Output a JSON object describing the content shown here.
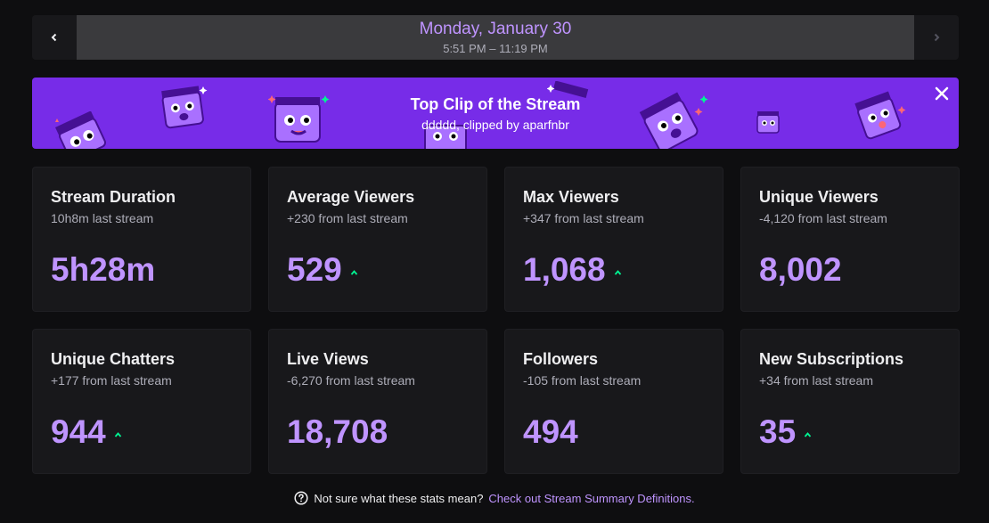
{
  "date_nav": {
    "title": "Monday, January 30",
    "range": "5:51 PM – 11:19 PM",
    "prev_icon": "chevron-left-icon",
    "next_icon": "chevron-right-icon"
  },
  "banner": {
    "title": "Top Clip of the Stream",
    "subtitle": "ddddd, clipped by aparfnbr",
    "close_icon": "close-icon",
    "bg_color": "#772ce8"
  },
  "stats": [
    {
      "title": "Stream Duration",
      "sub": "10h8m last stream",
      "value": "5h28m",
      "trend": "none"
    },
    {
      "title": "Average Viewers",
      "sub": "+230 from last stream",
      "value": "529",
      "trend": "up"
    },
    {
      "title": "Max Viewers",
      "sub": "+347 from last stream",
      "value": "1,068",
      "trend": "up"
    },
    {
      "title": "Unique Viewers",
      "sub": "-4,120 from last stream",
      "value": "8,002",
      "trend": "none"
    },
    {
      "title": "Unique Chatters",
      "sub": "+177 from last stream",
      "value": "944",
      "trend": "up"
    },
    {
      "title": "Live Views",
      "sub": "-6,270 from last stream",
      "value": "18,708",
      "trend": "none"
    },
    {
      "title": "Followers",
      "sub": "-105 from last stream",
      "value": "494",
      "trend": "none"
    },
    {
      "title": "New Subscriptions",
      "sub": "+34 from last stream",
      "value": "35",
      "trend": "up"
    }
  ],
  "footer": {
    "text": "Not sure what these stats mean?",
    "link": "Check out Stream Summary Definitions.",
    "help_icon": "question-circle-icon"
  },
  "colors": {
    "accent": "#bf94ff",
    "trend_up": "#00f593",
    "card_bg": "#18181b",
    "page_bg": "#0e0e10"
  }
}
